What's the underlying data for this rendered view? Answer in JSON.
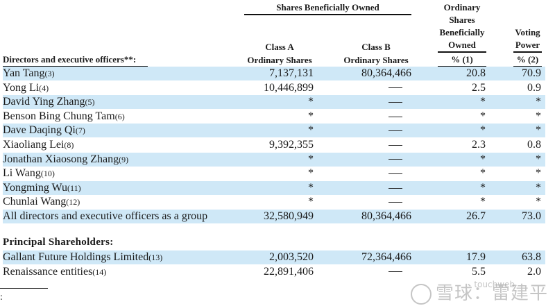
{
  "header": {
    "group_label": "Shares Beneficially Owned",
    "row_label": "Directors and executive officers**:",
    "class_a_line1": "Class A",
    "class_a_line2": "Ordinary Shares",
    "class_b_line1": "Class B",
    "class_b_line2": "Ordinary Shares",
    "pct_owned_lines": [
      "Ordinary",
      "Shares",
      "Beneficially",
      "Owned"
    ],
    "pct_owned_unit": "% (1)",
    "voting_lines": [
      "Voting",
      "Power"
    ],
    "voting_unit": "% (2)"
  },
  "directors": [
    {
      "name": "Yan Tang",
      "fn": "(3)",
      "class_a": "7,137,131",
      "class_b": "80,364,466",
      "pct": "20.8",
      "voting": "70.9"
    },
    {
      "name": "Yong Li",
      "fn": "(4)",
      "class_a": "10,446,899",
      "class_b": "—",
      "pct": "2.5",
      "voting": "0.9"
    },
    {
      "name": "David Ying Zhang",
      "fn": "(5)",
      "class_a": "*",
      "class_b": "—",
      "pct": "*",
      "voting": "*"
    },
    {
      "name": "Benson Bing Chung Tam",
      "fn": "(6)",
      "class_a": "*",
      "class_b": "—",
      "pct": "*",
      "voting": "*"
    },
    {
      "name": "Dave Daqing Qi",
      "fn": "(7)",
      "class_a": "*",
      "class_b": "—",
      "pct": "*",
      "voting": "*"
    },
    {
      "name": "Xiaoliang Lei",
      "fn": "(8)",
      "class_a": "9,392,355",
      "class_b": "—",
      "pct": "2.3",
      "voting": "0.8"
    },
    {
      "name": "Jonathan Xiaosong Zhang",
      "fn": "(9)",
      "class_a": "*",
      "class_b": "—",
      "pct": "*",
      "voting": "*"
    },
    {
      "name": "Li Wang",
      "fn": "(10)",
      "class_a": "*",
      "class_b": "—",
      "pct": "*",
      "voting": "*"
    },
    {
      "name": "Yongming Wu",
      "fn": "(11)",
      "class_a": "*",
      "class_b": "—",
      "pct": "*",
      "voting": "*"
    },
    {
      "name": "Chunlai Wang",
      "fn": "(12)",
      "class_a": "*",
      "class_b": "—",
      "pct": "*",
      "voting": "*"
    },
    {
      "name": "All directors and executive officers as a group",
      "fn": "",
      "class_a": "32,580,949",
      "class_b": "80,364,466",
      "pct": "26.7",
      "voting": "73.0"
    }
  ],
  "principal": {
    "title": "Principal Shareholders:",
    "rows": [
      {
        "name": "Gallant Future Holdings Limited",
        "fn": "(13)",
        "class_a": "2,003,520",
        "class_b": "72,364,466",
        "pct": "17.9",
        "voting": "63.8"
      },
      {
        "name": "Renaissance entities",
        "fn": "(14)",
        "class_a": "22,891,406",
        "class_b": "—",
        "pct": "5.5",
        "voting": "2.0"
      }
    ]
  },
  "footer": {
    "colon": ":"
  },
  "watermark": {
    "text": "雪球：雷建平",
    "sub": "touchweb"
  },
  "colors": {
    "row_shade": "#cfe8f7",
    "text": "#1a1a1a"
  }
}
